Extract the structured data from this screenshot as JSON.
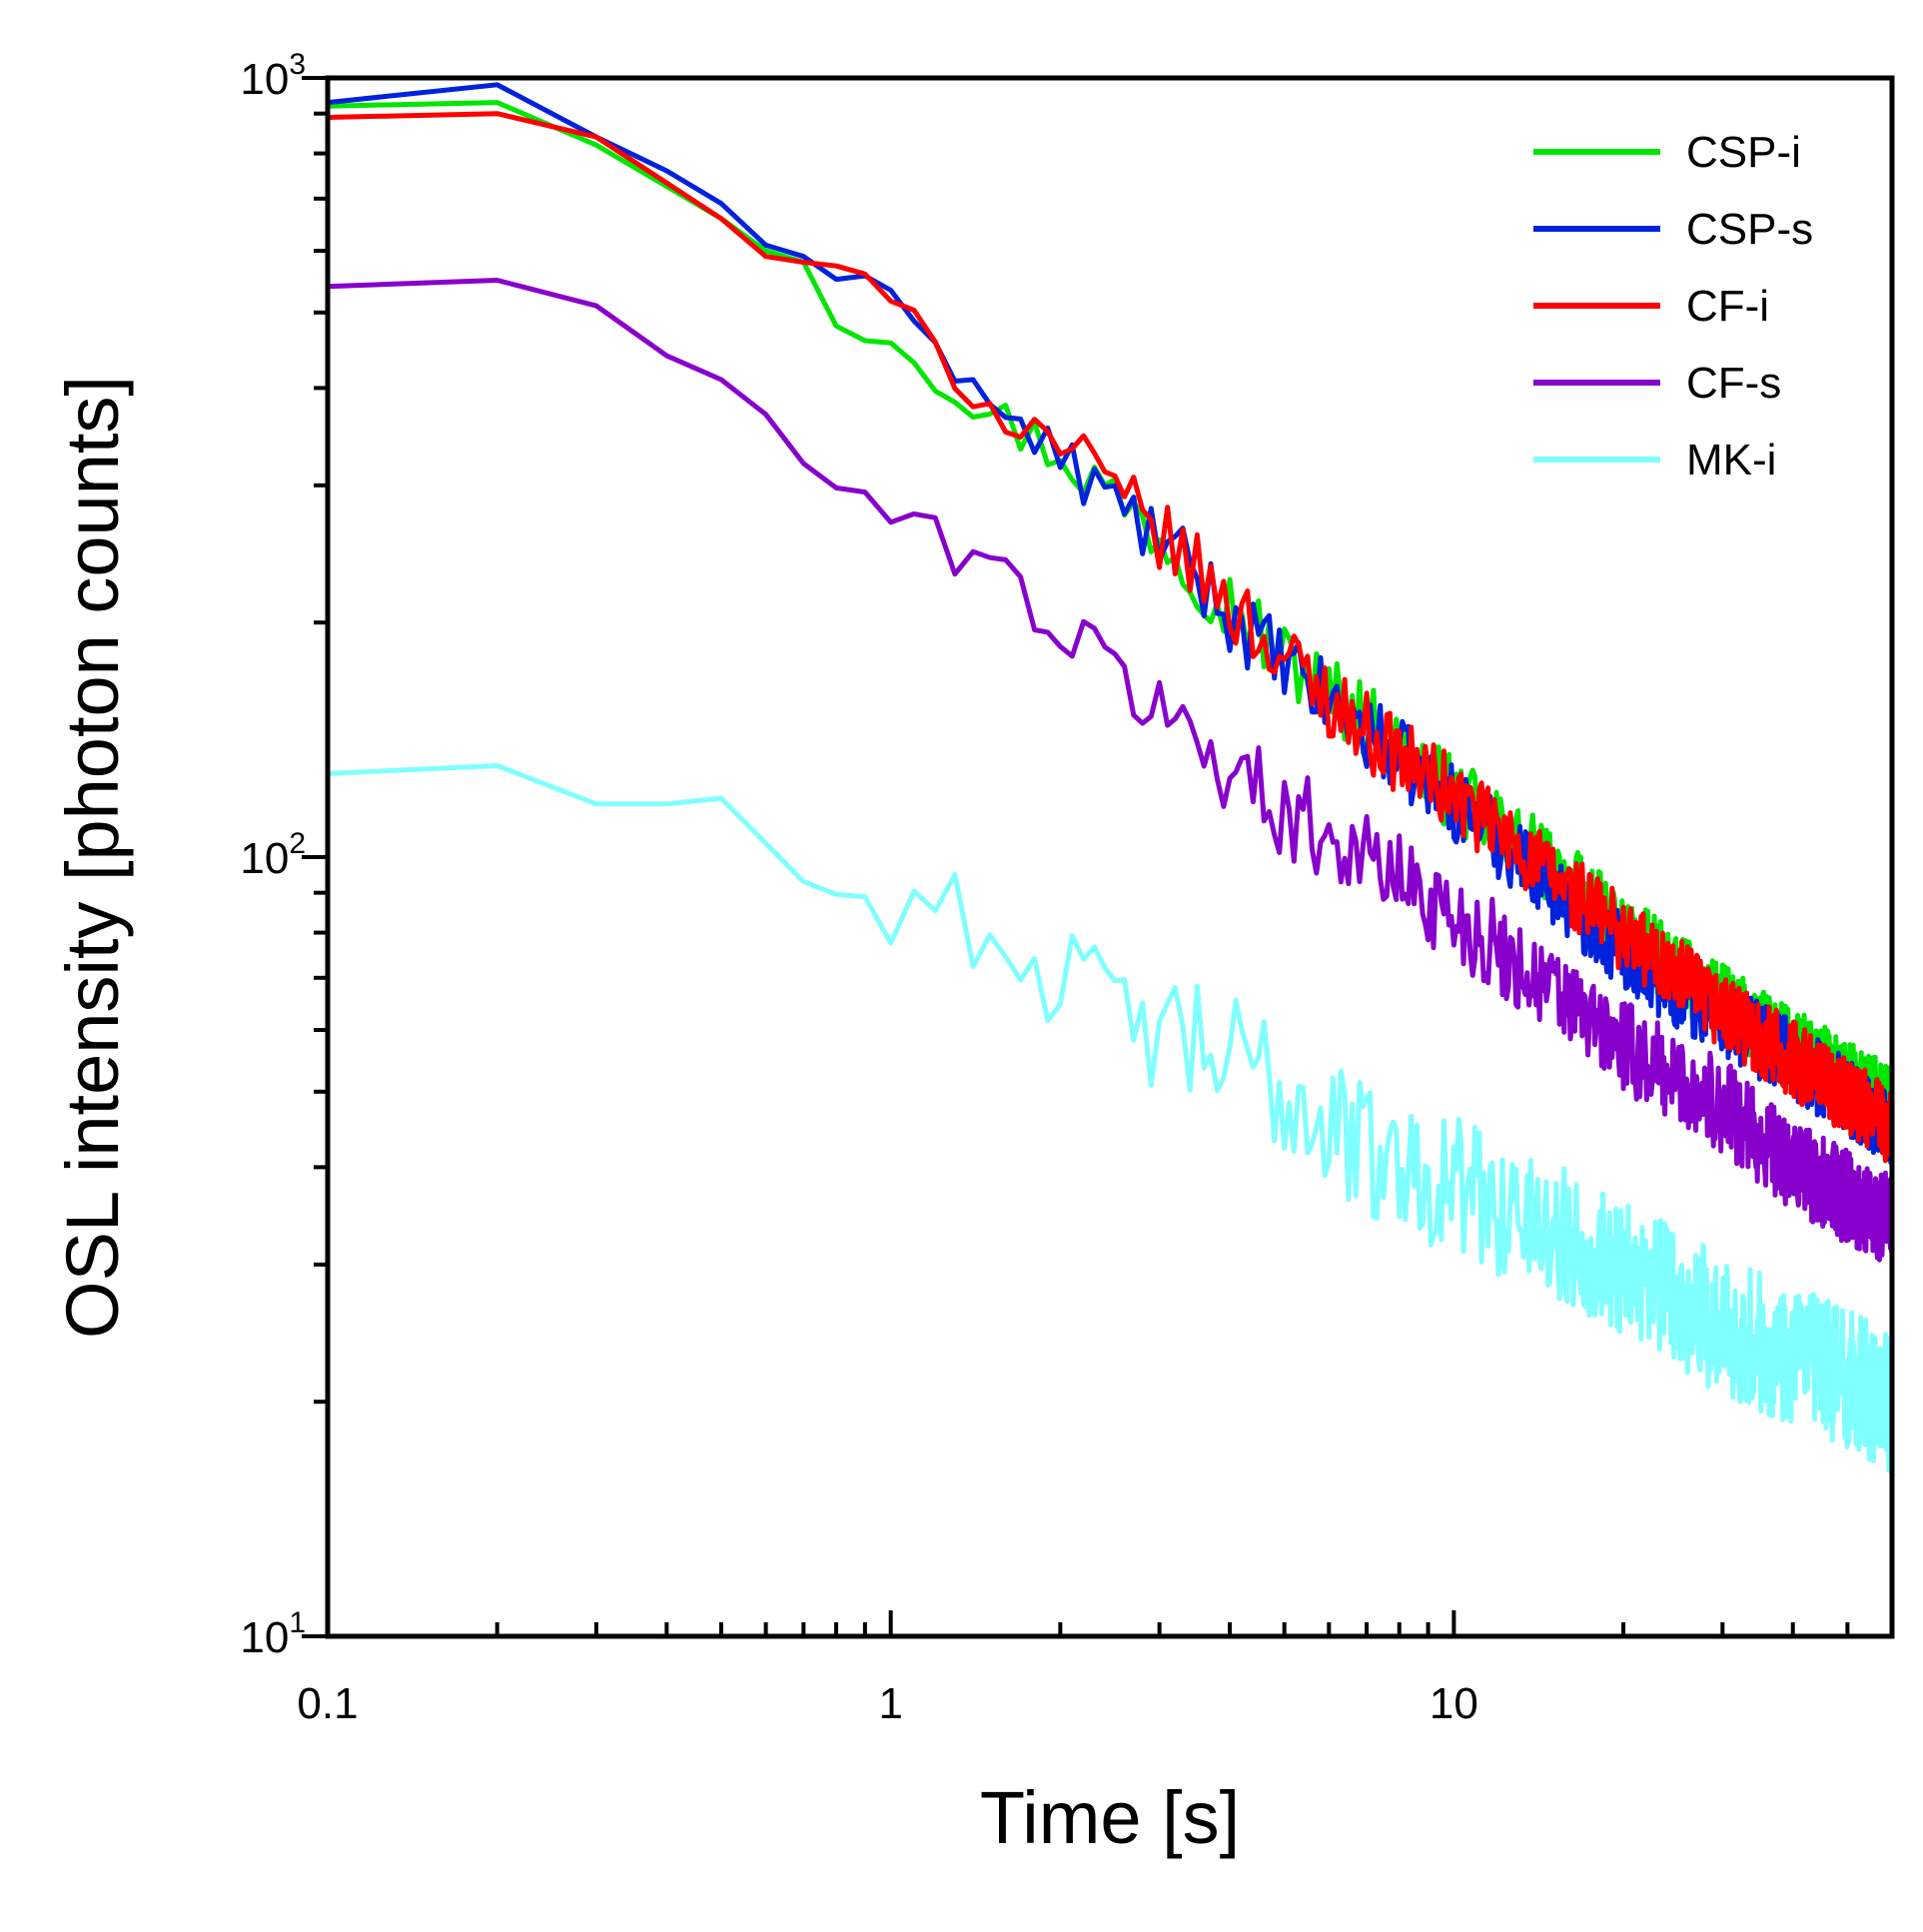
{
  "chart_data": {
    "type": "line",
    "title": "",
    "xlabel": "Time [s]",
    "ylabel": "OSL intensity [photon counts]",
    "xscale": "log",
    "yscale": "log",
    "xlim": [
      0.1,
      60
    ],
    "ylim": [
      10,
      1000
    ],
    "x_tick_labels": [
      {
        "value": 0.1,
        "label": "0.1"
      },
      {
        "value": 1,
        "label": "1"
      },
      {
        "value": 10,
        "label": "10"
      }
    ],
    "y_tick_labels": [
      {
        "value": 1000,
        "base": "10",
        "exp": "3"
      },
      {
        "value": 100,
        "base": "10",
        "exp": "2"
      },
      {
        "value": 10,
        "base": "10",
        "exp": "1"
      }
    ],
    "grid": false,
    "legend_position": "top-right",
    "series": [
      {
        "name": "CSP-i",
        "color": "#00e600",
        "noise": 0.05,
        "points": [
          [
            0.1,
            920
          ],
          [
            0.2,
            930
          ],
          [
            0.3,
            820
          ],
          [
            0.5,
            660
          ],
          [
            0.6,
            600
          ],
          [
            0.7,
            580
          ],
          [
            0.8,
            490
          ],
          [
            1,
            470
          ],
          [
            1.2,
            420
          ],
          [
            1.5,
            370
          ],
          [
            2,
            330
          ],
          [
            3,
            260
          ],
          [
            5,
            180
          ],
          [
            7,
            150
          ],
          [
            10,
            120
          ],
          [
            15,
            97
          ],
          [
            20,
            80
          ],
          [
            30,
            65
          ],
          [
            40,
            57
          ],
          [
            60,
            48
          ]
        ]
      },
      {
        "name": "CSP-s",
        "color": "#0022dd",
        "noise": 0.05,
        "points": [
          [
            0.1,
            930
          ],
          [
            0.2,
            980
          ],
          [
            0.3,
            840
          ],
          [
            0.4,
            760
          ],
          [
            0.5,
            690
          ],
          [
            0.6,
            610
          ],
          [
            0.7,
            590
          ],
          [
            0.8,
            560
          ],
          [
            1,
            510
          ],
          [
            1.1,
            510
          ],
          [
            1.3,
            430
          ],
          [
            1.5,
            380
          ],
          [
            2,
            325
          ],
          [
            3,
            255
          ],
          [
            5,
            175
          ],
          [
            7,
            145
          ],
          [
            10,
            118
          ],
          [
            15,
            92
          ],
          [
            20,
            75
          ],
          [
            30,
            62
          ],
          [
            40,
            55
          ],
          [
            60,
            45
          ]
        ]
      },
      {
        "name": "CF-i",
        "color": "#ff0000",
        "noise": 0.05,
        "points": [
          [
            0.1,
            890
          ],
          [
            0.2,
            900
          ],
          [
            0.3,
            840
          ],
          [
            0.5,
            660
          ],
          [
            0.6,
            590
          ],
          [
            0.7,
            580
          ],
          [
            0.8,
            580
          ],
          [
            1,
            510
          ],
          [
            1.2,
            450
          ],
          [
            1.5,
            380
          ],
          [
            2,
            340
          ],
          [
            3,
            260
          ],
          [
            5,
            180
          ],
          [
            7,
            145
          ],
          [
            10,
            120
          ],
          [
            15,
            94
          ],
          [
            20,
            80
          ],
          [
            30,
            63
          ],
          [
            40,
            55
          ],
          [
            60,
            45
          ]
        ]
      },
      {
        "name": "CF-s",
        "color": "#8800cc",
        "noise": 0.06,
        "points": [
          [
            0.1,
            540
          ],
          [
            0.2,
            550
          ],
          [
            0.3,
            510
          ],
          [
            0.4,
            440
          ],
          [
            0.5,
            410
          ],
          [
            0.6,
            370
          ],
          [
            0.7,
            320
          ],
          [
            0.8,
            300
          ],
          [
            1,
            275
          ],
          [
            1.2,
            255
          ],
          [
            1.5,
            240
          ],
          [
            2,
            195
          ],
          [
            3,
            155
          ],
          [
            4,
            130
          ],
          [
            5,
            115
          ],
          [
            7,
            100
          ],
          [
            10,
            84
          ],
          [
            15,
            67
          ],
          [
            20,
            57
          ],
          [
            30,
            48
          ],
          [
            40,
            40
          ],
          [
            60,
            34
          ]
        ]
      },
      {
        "name": "MK-i",
        "color": "#80ffff",
        "noise": 0.09,
        "points": [
          [
            0.1,
            128
          ],
          [
            0.2,
            131
          ],
          [
            0.3,
            117
          ],
          [
            0.4,
            117
          ],
          [
            0.5,
            119
          ],
          [
            0.7,
            93
          ],
          [
            1,
            85
          ],
          [
            1.2,
            90
          ],
          [
            1.5,
            78
          ],
          [
            2,
            70
          ],
          [
            3,
            59
          ],
          [
            4,
            55
          ],
          [
            5,
            50
          ],
          [
            7,
            42
          ],
          [
            10,
            38
          ],
          [
            15,
            33
          ],
          [
            20,
            30
          ],
          [
            30,
            25
          ],
          [
            40,
            23
          ],
          [
            60,
            20
          ]
        ]
      }
    ]
  }
}
